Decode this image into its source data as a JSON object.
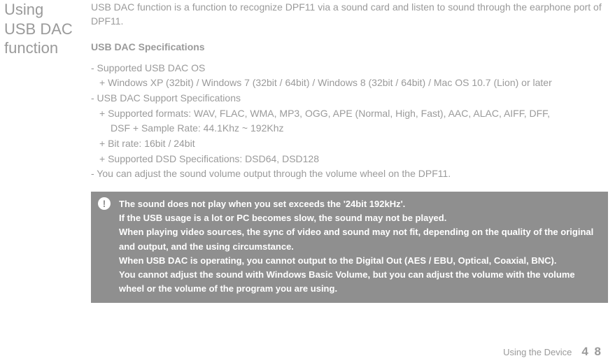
{
  "sidebar": {
    "title_line1": "Using",
    "title_line2": "USB DAC",
    "title_line3": "function"
  },
  "intro": "USB DAC function is a function to recognize DPF11 via a sound card and listen to sound through the earphone port of DPF11.",
  "subhead": "USB DAC Specifications",
  "specs": {
    "line1": "- Supported USB DAC OS",
    "line2": "+ Windows XP (32bit) / Windows 7 (32bit / 64bit) / Windows 8 (32bit / 64bit) / Mac OS 10.7 (Lion) or later",
    "line3": "- USB DAC Support Specifications",
    "line4": "+ Supported formats: WAV, FLAC, WMA, MP3, OGG, APE (Normal, High, Fast), AAC, ALAC, AIFF, DFF,",
    "line4b": "DSF + Sample Rate: 44.1Khz ~ 192Khz",
    "line5": "+ Bit rate: 16bit / 24bit",
    "line6": "+ Supported DSD Specifications: DSD64, DSD128",
    "line7": "- You can adjust the sound volume output through the volume wheel on the DPF11."
  },
  "notice": {
    "icon": "!",
    "l1": "The sound does not play when you set exceeds the '24bit 192kHz'.",
    "l2": "If the USB usage is a lot or PC becomes slow, the sound may not be played.",
    "l3": "When playing video sources, the sync of video and sound may not fit, depending on the quality of the original and output, and the using circumstance.",
    "l4": "When USB DAC is operating, you cannot output to the Digital Out (AES / EBU, Optical, Coaxial, BNC).",
    "l5": "You cannot adjust the sound with Windows Basic Volume, but you can adjust the volume with the volume wheel or the volume of the program you are using."
  },
  "footer": {
    "section": "Using the Device",
    "page": "4 8"
  }
}
